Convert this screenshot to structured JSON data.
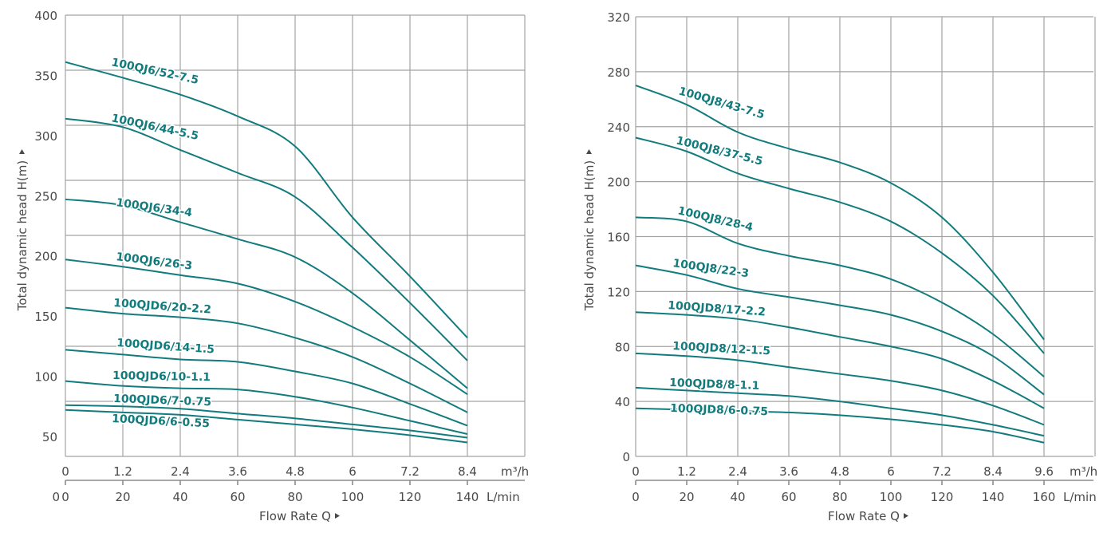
{
  "colors": {
    "curve": "#127b7e",
    "grid": "#a3a3a3",
    "text": "#4a4a4a"
  },
  "chart_data": [
    {
      "type": "line",
      "title": "",
      "xlabel": "Flow Rate Q",
      "ylabel": "Total dynamic head H(m)",
      "x_unit_primary": "m³/h",
      "x_unit_secondary": "L/min",
      "xlim": [
        0,
        8.4
      ],
      "ylim": [
        50,
        400
      ],
      "x_ticks_primary": [
        "0",
        "1.2",
        "2.4",
        "3.6",
        "4.8",
        "6",
        "7.2",
        "8.4"
      ],
      "x_ticks_secondary": [
        "0",
        "20",
        "40",
        "60",
        "80",
        "100",
        "120",
        "140"
      ],
      "x_secondary_prefix": "0",
      "y_ticks": [
        "400",
        "350",
        "300",
        "250",
        "200",
        "150",
        "100",
        "50"
      ],
      "y_tick_values": [
        400,
        350,
        300,
        250,
        200,
        150,
        100,
        50
      ],
      "grid": true,
      "x": [
        0,
        1.2,
        2.4,
        3.6,
        4.8,
        6,
        7.2,
        8.4
      ],
      "series": [
        {
          "name": "100QJ6/52-7.5",
          "values": [
            361,
            348,
            334,
            316,
            291,
            232,
            183,
            132
          ]
        },
        {
          "name": "100QJ6/44-5.5",
          "values": [
            314,
            307,
            288,
            269,
            249,
            207,
            161,
            113
          ]
        },
        {
          "name": "100QJ6/34-4",
          "values": [
            247,
            242,
            228,
            214,
            199,
            169,
            130,
            90
          ]
        },
        {
          "name": "100QJ6/26-3",
          "values": [
            197,
            191,
            184,
            177,
            162,
            141,
            116,
            85
          ]
        },
        {
          "name": "100QJD6/20-2.2",
          "values": [
            157,
            152,
            149,
            144,
            132,
            116,
            94,
            70
          ]
        },
        {
          "name": "100QJD6/14-1.5",
          "values": [
            122,
            118,
            114,
            112,
            104,
            94,
            77,
            59
          ]
        },
        {
          "name": "100QJD6/10-1.1",
          "values": [
            96,
            92,
            90,
            89,
            83,
            74,
            63,
            52
          ]
        },
        {
          "name": "100QJD6/7-0.75",
          "values": [
            76,
            75,
            73,
            69,
            65,
            60,
            55,
            49
          ]
        },
        {
          "name": "100QJD6/6-0.55",
          "values": [
            72,
            70,
            68,
            64,
            60,
            56,
            51,
            45
          ]
        }
      ]
    },
    {
      "type": "line",
      "title": "",
      "xlabel": "Flow Rate Q",
      "ylabel": "Total dynamic head H(m)",
      "x_unit_primary": "m³/h",
      "x_unit_secondary": "L/min",
      "xlim": [
        0,
        9.6
      ],
      "ylim": [
        0,
        320
      ],
      "x_ticks_primary": [
        "0",
        "1.2",
        "2.4",
        "3.6",
        "4.8",
        "6",
        "7.2",
        "8.4",
        "9.6"
      ],
      "x_ticks_secondary": [
        "0",
        "20",
        "40",
        "60",
        "80",
        "100",
        "120",
        "140",
        "160"
      ],
      "x_secondary_prefix": "",
      "y_ticks": [
        "320",
        "280",
        "240",
        "200",
        "160",
        "120",
        "80",
        "40",
        "0"
      ],
      "y_tick_values": [
        320,
        280,
        240,
        200,
        160,
        120,
        80,
        40,
        0
      ],
      "grid": true,
      "x": [
        0,
        1.2,
        2.4,
        3.6,
        4.8,
        6,
        7.2,
        8.4,
        9.6
      ],
      "series": [
        {
          "name": "100QJ8/43-7.5",
          "values": [
            270,
            256,
            236,
            224,
            214,
            199,
            174,
            134,
            85
          ]
        },
        {
          "name": "100QJ8/37-5.5",
          "values": [
            232,
            222,
            206,
            195,
            185,
            171,
            148,
            117,
            75
          ]
        },
        {
          "name": "100QJ8/28-4",
          "values": [
            174,
            171,
            155,
            146,
            139,
            129,
            112,
            89,
            58
          ]
        },
        {
          "name": "100QJ8/22-3",
          "values": [
            139,
            132,
            122,
            116,
            110,
            103,
            91,
            73,
            45
          ]
        },
        {
          "name": "100QJD8/17-2.2",
          "values": [
            105,
            103,
            100,
            94,
            87,
            80,
            71,
            55,
            35
          ]
        },
        {
          "name": "100QJD8/12-1.5",
          "values": [
            75,
            73,
            70,
            65,
            60,
            55,
            48,
            37,
            23
          ]
        },
        {
          "name": "100QJD8/8-1.1",
          "values": [
            50,
            48,
            46,
            44,
            40,
            35,
            30,
            23,
            15
          ]
        },
        {
          "name": "100QJD8/6-0.75",
          "values": [
            35,
            34,
            33,
            32,
            30,
            27,
            23,
            18,
            10
          ]
        }
      ]
    }
  ]
}
